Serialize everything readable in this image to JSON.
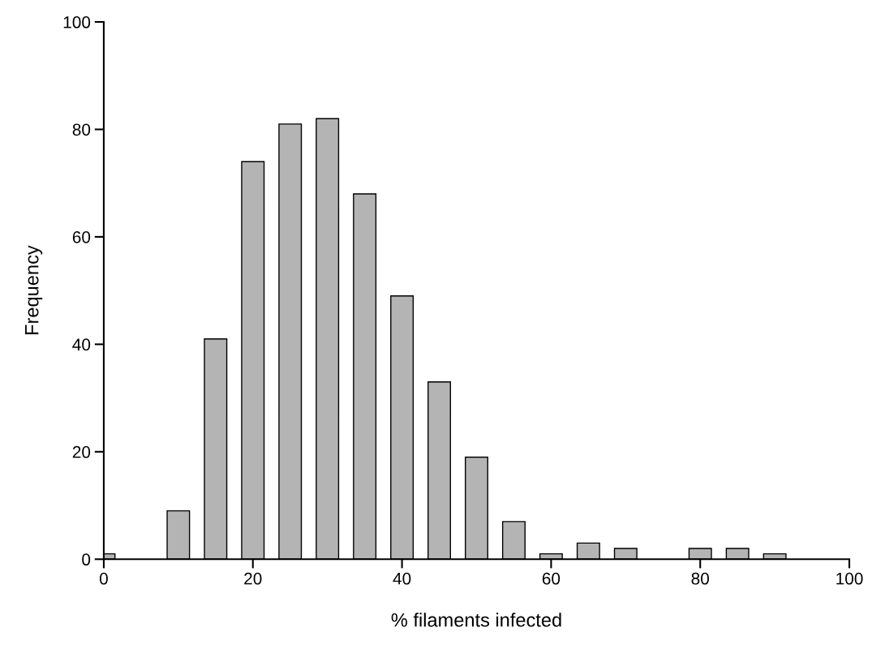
{
  "chart_data": {
    "type": "bar",
    "xlabel": "% filaments infected",
    "ylabel": "Frequency",
    "x": [
      0,
      10,
      15,
      20,
      25,
      30,
      35,
      40,
      45,
      50,
      55,
      60,
      65,
      70,
      80,
      85,
      90
    ],
    "values": [
      1,
      9,
      41,
      74,
      81,
      82,
      68,
      49,
      33,
      19,
      7,
      1,
      3,
      2,
      2,
      2,
      1
    ],
    "color": "#b4b4b4",
    "xlim": [
      0,
      100
    ],
    "xticks": [
      0,
      20,
      40,
      60,
      80,
      100
    ],
    "ylim": [
      0,
      100
    ],
    "yticks": [
      0,
      20,
      40,
      60,
      80,
      100
    ],
    "grid": false,
    "legend": false
  }
}
